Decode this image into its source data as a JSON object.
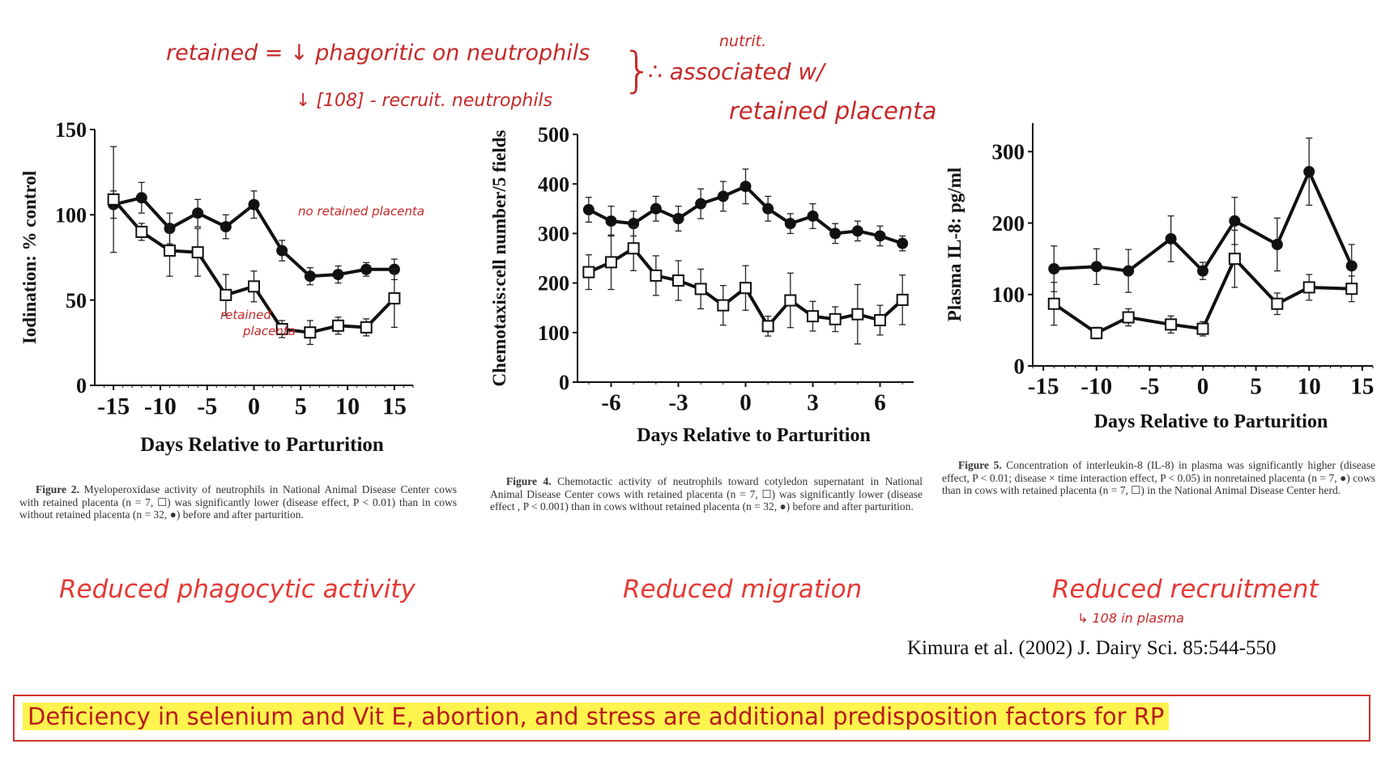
{
  "annotations": {
    "line1": "retained = ↓ phagoritic on neutrophils",
    "line2": "↓ [108] - recruit. neutrophils",
    "brace": "}",
    "nutrit": "nutrit.",
    "assoc": "∴ associated w/",
    "retained_placenta": "retained placenta",
    "fig2_no_rp": "no retained placenta",
    "fig2_rp_1": "retained",
    "fig2_rp_2": "placenta",
    "fig5_note": "↳ 108 in plasma"
  },
  "captions": {
    "fig2": {
      "label": "Figure 2.",
      "text": " Myeloperoxidase activity of neutrophils in National Animal Disease Center cows with retained placenta (n = 7, ☐) was significantly lower (disease effect, P < 0.01) than in cows without retained placenta (n = 32, ●) before and after parturition."
    },
    "fig4": {
      "label": "Figure 4.",
      "text": " Chemotactic activity of neutrophils toward cotyledon supernatant in National Animal Disease Center cows with retained placenta (n = 7, ☐) was significantly lower (disease effect , P < 0.001) than in cows without retained placenta (n = 32, ●) before and after parturition."
    },
    "fig5": {
      "label": "Figure 5.",
      "text": " Concentration of interleukin-8 (IL-8) in plasma was significantly higher (disease effect, P < 0.01; disease × time interaction effect, P < 0.05) in nonretained placenta (n = 7, ●) cows than in cows with retained placenta (n = 7, ☐) in the National Animal Disease Center herd."
    }
  },
  "headings": {
    "fig2": "Reduced phagocytic activity",
    "fig4": "Reduced migration",
    "fig5": "Reduced recruitment"
  },
  "citation": "Kimura et al. (2002) J. Dairy Sci. 85:544-550",
  "banner": "Deficiency in selenium and Vit E, abortion, and stress are additional predisposition factors for RP",
  "colors": {
    "annotation": "#c62828",
    "heading": "#e53935",
    "banner_border": "#d32f2f",
    "highlight": "#fff34d",
    "ink": "#111111"
  },
  "chart_data": [
    {
      "type": "line",
      "title": "",
      "xlabel": "Days Relative to Parturition",
      "ylabel": "Iodination: % control",
      "xlim": [
        -17,
        17
      ],
      "ylim": [
        0,
        150
      ],
      "xticks": [
        -15,
        -10,
        -5,
        0,
        5,
        10,
        15
      ],
      "xtick_labels": [
        "-15",
        "-10",
        "-5",
        "0",
        "5",
        "10",
        "15"
      ],
      "yticks": [
        0,
        50,
        100,
        150
      ],
      "ytick_labels": [
        "0",
        "50",
        "100",
        "150"
      ],
      "series": [
        {
          "name": "no retained placenta",
          "marker": "filled-circle",
          "x": [
            -15,
            -12,
            -9,
            -6,
            -3,
            0,
            3,
            6,
            9,
            12,
            15
          ],
          "values": [
            106,
            110,
            92,
            101,
            93,
            106,
            79,
            64,
            65,
            68,
            68
          ],
          "errors": [
            8,
            9,
            9,
            8,
            7,
            8,
            6,
            5,
            5,
            4,
            6
          ]
        },
        {
          "name": "retained placenta",
          "marker": "open-square",
          "x": [
            -15,
            -12,
            -9,
            -6,
            -3,
            0,
            3,
            6,
            9,
            12,
            15
          ],
          "values": [
            109,
            90,
            79,
            78,
            53,
            58,
            33,
            31,
            35,
            34,
            51
          ],
          "errors": [
            31,
            5,
            15,
            14,
            12,
            9,
            5,
            7,
            5,
            5,
            17
          ]
        }
      ]
    },
    {
      "type": "line",
      "title": "",
      "xlabel": "Days Relative to Parturition",
      "ylabel": "Chemotaxis:cell number/5 fields",
      "xlim": [
        -7.5,
        7.5
      ],
      "ylim": [
        0,
        500
      ],
      "xticks": [
        -6,
        -3,
        0,
        3,
        6
      ],
      "xtick_labels": [
        "-6",
        "-3",
        "0",
        "3",
        "6"
      ],
      "yticks": [
        0,
        100,
        200,
        300,
        400,
        500
      ],
      "ytick_labels": [
        "0",
        "100",
        "200",
        "300",
        "400",
        "500"
      ],
      "series": [
        {
          "name": "no retained placenta",
          "marker": "filled-circle",
          "x": [
            -7,
            -6,
            -5,
            -4,
            -3,
            -2,
            -1,
            0,
            1,
            2,
            3,
            4,
            5,
            6,
            7
          ],
          "values": [
            348,
            325,
            320,
            350,
            330,
            360,
            375,
            395,
            350,
            320,
            335,
            300,
            305,
            295,
            280
          ],
          "errors": [
            25,
            30,
            25,
            25,
            25,
            30,
            30,
            35,
            25,
            20,
            25,
            20,
            20,
            20,
            15
          ]
        },
        {
          "name": "retained placenta",
          "marker": "open-square",
          "x": [
            -7,
            -6,
            -5,
            -4,
            -3,
            -2,
            -1,
            0,
            1,
            2,
            3,
            4,
            5,
            6,
            7
          ],
          "values": [
            222,
            242,
            270,
            215,
            205,
            188,
            155,
            190,
            113,
            165,
            133,
            127,
            137,
            125,
            166
          ],
          "errors": [
            35,
            55,
            45,
            40,
            40,
            40,
            40,
            45,
            20,
            55,
            30,
            25,
            60,
            30,
            50
          ]
        }
      ]
    },
    {
      "type": "line",
      "title": "",
      "xlabel": "Days Relative to Parturition",
      "ylabel": "Plasma IL-8: pg/ml",
      "xlim": [
        -16,
        16
      ],
      "ylim": [
        0,
        340
      ],
      "xticks": [
        -15,
        -10,
        -5,
        0,
        5,
        10,
        15
      ],
      "xtick_labels": [
        "-15",
        "-10",
        "-5",
        "0",
        "5",
        "10",
        "15"
      ],
      "yticks": [
        0,
        100,
        200,
        300
      ],
      "ytick_labels": [
        "0",
        "100",
        "200",
        "300"
      ],
      "series": [
        {
          "name": "nonretained placenta",
          "marker": "filled-circle",
          "x": [
            -14,
            -10,
            -7,
            -3,
            0,
            3,
            7,
            10,
            14
          ],
          "values": [
            136,
            139,
            133,
            178,
            133,
            203,
            170,
            272,
            140
          ],
          "errors": [
            32,
            25,
            30,
            32,
            12,
            33,
            37,
            47,
            30
          ]
        },
        {
          "name": "retained placenta",
          "marker": "open-square",
          "x": [
            -14,
            -10,
            -7,
            -3,
            0,
            3,
            7,
            10,
            14
          ],
          "values": [
            87,
            46,
            68,
            58,
            52,
            150,
            87,
            110,
            108
          ],
          "errors": [
            30,
            8,
            12,
            12,
            10,
            40,
            15,
            18,
            18
          ]
        }
      ]
    }
  ]
}
